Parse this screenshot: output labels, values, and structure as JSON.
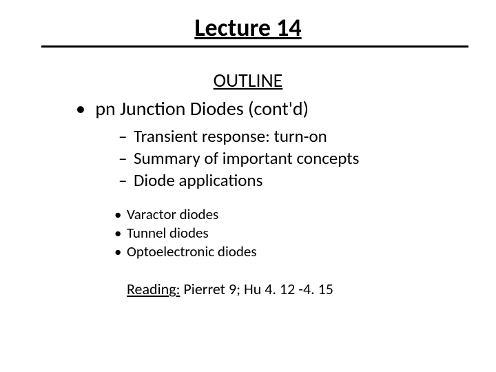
{
  "colors": {
    "text": "#000000",
    "background": "#ffffff",
    "rule": "#000000"
  },
  "title": {
    "text": "Lecture 14",
    "style": "font-size:36px;font-weight:700;"
  },
  "outline": {
    "heading": "OUTLINE",
    "heading_style": "font-size:28px;",
    "level1_style": "font-size:28px;",
    "level2_style": "font-size:25px;",
    "level3_style": "font-size:21px;",
    "level1": [
      {
        "text": "pn Junction Diodes (cont'd)",
        "children": [
          {
            "text": "Transient response: turn-on"
          },
          {
            "text": "Summary of important concepts"
          },
          {
            "text": "Diode applications",
            "children": [
              {
                "text": "Varactor diodes"
              },
              {
                "text": "Tunnel diodes"
              },
              {
                "text": "Optoelectronic diodes"
              }
            ]
          }
        ]
      }
    ]
  },
  "reading": {
    "label": "Reading:",
    "text": " Pierret 9; Hu 4. 12 -4. 15",
    "style": "font-size:22px;"
  }
}
